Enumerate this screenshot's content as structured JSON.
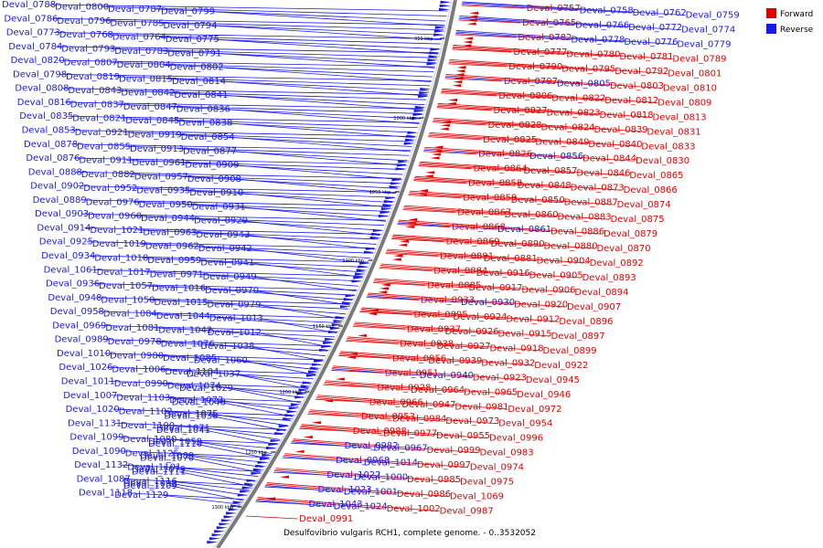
{
  "caption": "Desulfovibrio vulgaris RCH1, complete genome. - 0..3532052",
  "legend": [
    {
      "label": "Forward",
      "color": "#e10000"
    },
    {
      "label": "Reverse",
      "color": "#1a1ae6"
    }
  ],
  "colors": {
    "forward": "#e10000",
    "reverse": "#1a1ae6",
    "backbone": "#7a7a7a"
  },
  "ticks": [
    "950 kbp",
    "1000 kbp",
    "1050 kbp",
    "1100 kbp",
    "1150 kbp",
    "1200 kbp",
    "1250 kbp",
    "1300 kbp"
  ],
  "left_labels": [
    "Deval_0788",
    "Deval_0800",
    "Deval_0787",
    "Deval_0799",
    "Deval_0786",
    "Deval_0796",
    "Deval_0785",
    "Deval_0794",
    "Deval_0773",
    "Deval_0768",
    "Deval_0764",
    "Deval_0775",
    "Deval_0784",
    "Deval_0793",
    "Deval_0783",
    "Deval_0791",
    "Deval_0820",
    "Deval_0807",
    "Deval_0804",
    "Deval_0802",
    "Deval_0798",
    "Deval_0819",
    "Deval_0815",
    "Deval_0814",
    "Deval_0808",
    "Deval_0843",
    "Deval_0842",
    "Deval_0841",
    "Deval_0816",
    "Deval_0837",
    "Deval_0847",
    "Deval_0836",
    "Deval_0835",
    "Deval_0821",
    "Deval_0845",
    "Deval_0838",
    "Deval_0853",
    "Deval_0921",
    "Deval_0919",
    "Deval_0854",
    "Deval_0878",
    "Deval_0855",
    "Deval_0913",
    "Deval_0877",
    "Deval_0876",
    "Deval_0911",
    "Deval_0961",
    "Deval_0909",
    "Deval_0888",
    "Deval_0882",
    "Deval_0957",
    "Deval_0908",
    "Deval_0902",
    "Deval_0952",
    "Deval_0935",
    "Deval_0910",
    "Deval_0889",
    "Deval_0976",
    "Deval_0950",
    "Deval_0931",
    "Deval_0903",
    "Deval_0960",
    "Deval_0944",
    "Deval_0929",
    "Deval_0914",
    "Deval_1021",
    "Deval_0963",
    "Deval_0943",
    "Deval_0925",
    "Deval_1019",
    "Deval_0962",
    "Deval_0942",
    "Deval_0934",
    "Deval_1018",
    "Deval_0959",
    "Deval_0941",
    "Deval_1061",
    "Deval_1017",
    "Deval_0971",
    "Deval_0949",
    "Deval_0936",
    "Deval_1057",
    "Deval_1016",
    "Deval_0970",
    "Deval_0948",
    "Deval_1050",
    "Deval_1015",
    "Deval_0979",
    "Deval_0958",
    "Deval_1084",
    "Deval_1044",
    "Deval_1013",
    "Deval_0969",
    "Deval_1081",
    "Deval_1042",
    "Deval_1012",
    "Deval_0989",
    "Deval_0978",
    "Deval_1076",
    "Deval_1038",
    "Deval_1010",
    "Deval_0980",
    "Deval_1085",
    "Deval_1060",
    "Deval_1026",
    "Deval_1006",
    "Deval_1104",
    "Deval_1037",
    "Deval_1011",
    "Deval_0990",
    "Deval_1074",
    "Deval_1029",
    "Deval_1007",
    "Deval_1103",
    "Deval_1073",
    "Deval_1048",
    "Deval_1020",
    "Deval_1102",
    "Deval_1075",
    "Deval_1030",
    "Deval_1131",
    "Deval_1100",
    "Deval_1071",
    "Deval_1041",
    "Deval_1099",
    "Deval_1080",
    "Deval_1059",
    "Deval_1110",
    "Deval_1090",
    "Deval_1125",
    "Deval_1089",
    "Deval_1070",
    "Deval_1132",
    "Deval_1101",
    "Deval_1079",
    "Deval_1111",
    "Deval_1087",
    "Deval_1116",
    "Deval_1092",
    "Deval_1109",
    "Deval_1118",
    "Deval_1129"
  ],
  "right_labels": [
    "Deval_0757",
    "Deval_0758",
    "Deval_0762",
    "Deval_0759",
    "Deval_0765",
    "Deval_0766",
    "Deval_0772",
    "Deval_0774",
    "Deval_0782",
    "Deval_0778",
    "Deval_0776",
    "Deval_0779",
    "Deval_0777",
    "Deval_0780",
    "Deval_0781",
    "Deval_0789",
    "Deval_0790",
    "Deval_0795",
    "Deval_0792",
    "Deval_0801",
    "Deval_0797",
    "Deval_0805",
    "Deval_0803",
    "Deval_0810",
    "Deval_0806",
    "Deval_0822",
    "Deval_0812",
    "Deval_0809",
    "Deval_0827",
    "Deval_0823",
    "Deval_0818",
    "Deval_0813",
    "Deval_0828",
    "Deval_0824",
    "Deval_0839",
    "Deval_0831",
    "Deval_0825",
    "Deval_0849",
    "Deval_0840",
    "Deval_0833",
    "Deval_0826",
    "Deval_0856",
    "Deval_0844",
    "Deval_0830",
    "Deval_0864",
    "Deval_0857",
    "Deval_0846",
    "Deval_0865",
    "Deval_0858",
    "Deval_0848",
    "Deval_0873",
    "Deval_0866",
    "Deval_0859",
    "Deval_0850",
    "Deval_0887",
    "Deval_0874",
    "Deval_0867",
    "Deval_0860",
    "Deval_0883",
    "Deval_0875",
    "Deval_0868",
    "Deval_0861",
    "Deval_0886",
    "Deval_0879",
    "Deval_0869",
    "Deval_0890",
    "Deval_0880",
    "Deval_0870",
    "Deval_0891",
    "Deval_0881",
    "Deval_0904",
    "Deval_0892",
    "Deval_0884",
    "Deval_0916",
    "Deval_0905",
    "Deval_0893",
    "Deval_0885",
    "Deval_0917",
    "Deval_0906",
    "Deval_0894",
    "Deval_0933",
    "Deval_0930",
    "Deval_0920",
    "Deval_0907",
    "Deval_0895",
    "Deval_0924",
    "Deval_0912",
    "Deval_0896",
    "Deval_0937",
    "Deval_0926",
    "Deval_0915",
    "Deval_0897",
    "Deval_0938",
    "Deval_0927",
    "Deval_0918",
    "Deval_0899",
    "Deval_0956",
    "Deval_0939",
    "Deval_0932",
    "Deval_0922",
    "Deval_0951",
    "Deval_0940",
    "Deval_0923",
    "Deval_0945",
    "Deval_0928",
    "Deval_0964",
    "Deval_0965",
    "Deval_0946",
    "Deval_0966",
    "Deval_0947",
    "Deval_0981",
    "Deval_0972",
    "Deval_0953",
    "Deval_0984",
    "Deval_0973",
    "Deval_0954",
    "Deval_0988",
    "Deval_0977",
    "Deval_0955",
    "Deval_0996",
    "Deval_0982",
    "Deval_0967",
    "Deval_0999",
    "Deval_0983",
    "Deval_0968",
    "Deval_1014",
    "Deval_0997",
    "Deval_0974",
    "Deval_1022",
    "Deval_1000",
    "Deval_0985",
    "Deval_0975",
    "Deval_1023",
    "Deval_1001",
    "Deval_0986",
    "Deval_1069",
    "Deval_1043",
    "Deval_1024",
    "Deval_1002",
    "Deval_0987",
    "Deval_0991"
  ]
}
